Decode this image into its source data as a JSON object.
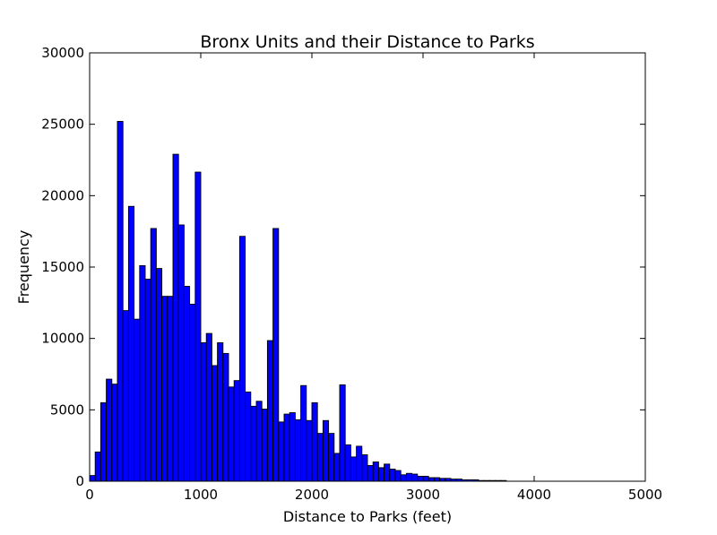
{
  "chart_data": {
    "type": "bar",
    "title": "Bronx Units and their Distance to Parks",
    "xlabel": "Distance to Parks (feet)",
    "ylabel": "Frequency",
    "xlim": [
      0,
      5000
    ],
    "ylim": [
      0,
      30000
    ],
    "x_ticks": [
      "0",
      "1000",
      "2000",
      "3000",
      "4000",
      "5000"
    ],
    "y_ticks": [
      "0",
      "5000",
      "10000",
      "15000",
      "20000",
      "25000",
      "30000"
    ],
    "bin_width": 50,
    "bin_start": 0,
    "bar_color": "#0000ff",
    "grid": false,
    "values": [
      400,
      2050,
      5500,
      7150,
      6800,
      25200,
      11950,
      19250,
      11350,
      15100,
      14150,
      17700,
      14900,
      12950,
      12950,
      22900,
      17950,
      13650,
      12400,
      21650,
      9700,
      10350,
      8100,
      9700,
      8950,
      6600,
      7050,
      17150,
      6250,
      5250,
      5600,
      5050,
      9850,
      17700,
      4150,
      4700,
      4800,
      4300,
      6700,
      4250,
      5500,
      3350,
      4250,
      3350,
      1950,
      6750,
      2550,
      1700,
      2450,
      1850,
      1100,
      1350,
      950,
      1200,
      850,
      750,
      450,
      550,
      500,
      350,
      350,
      250,
      250,
      200,
      200,
      150,
      150,
      100,
      100,
      100,
      50,
      50,
      50,
      50,
      50
    ]
  }
}
